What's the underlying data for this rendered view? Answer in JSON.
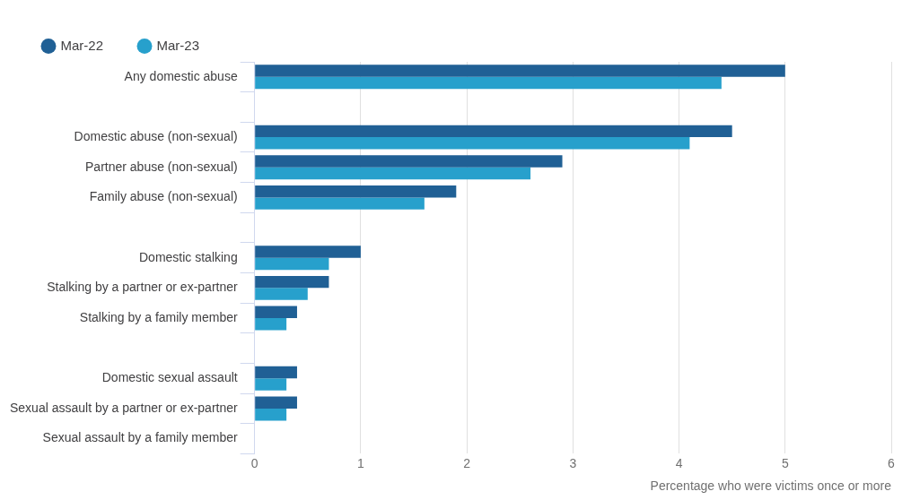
{
  "chart_data": {
    "type": "bar",
    "orientation": "horizontal",
    "xlabel": "Percentage who were victims once or more",
    "categories": [
      "Any domestic abuse",
      null,
      "Domestic abuse (non-sexual)",
      "Partner abuse (non-sexual)",
      "Family abuse (non-sexual)",
      null,
      "Domestic stalking",
      "Stalking by a partner or ex-partner",
      "Stalking by a family member",
      null,
      "Domestic sexual assault",
      "Sexual assault by a partner or ex-partner",
      "Sexual assault by a family member"
    ],
    "series": [
      {
        "name": "Mar-22",
        "color": "#206095",
        "values": [
          5.0,
          null,
          4.5,
          2.9,
          1.9,
          null,
          1.0,
          0.7,
          0.4,
          null,
          0.4,
          0.4,
          null
        ]
      },
      {
        "name": "Mar-23",
        "color": "#27a0cc",
        "values": [
          4.4,
          null,
          4.1,
          2.6,
          1.6,
          null,
          0.7,
          0.5,
          0.3,
          null,
          0.3,
          0.3,
          null
        ]
      }
    ],
    "xlim": [
      0,
      6
    ],
    "xticks": [
      0,
      1,
      2,
      3,
      4,
      5,
      6
    ],
    "grid": "x",
    "legend": "top left",
    "marker": "circle"
  }
}
